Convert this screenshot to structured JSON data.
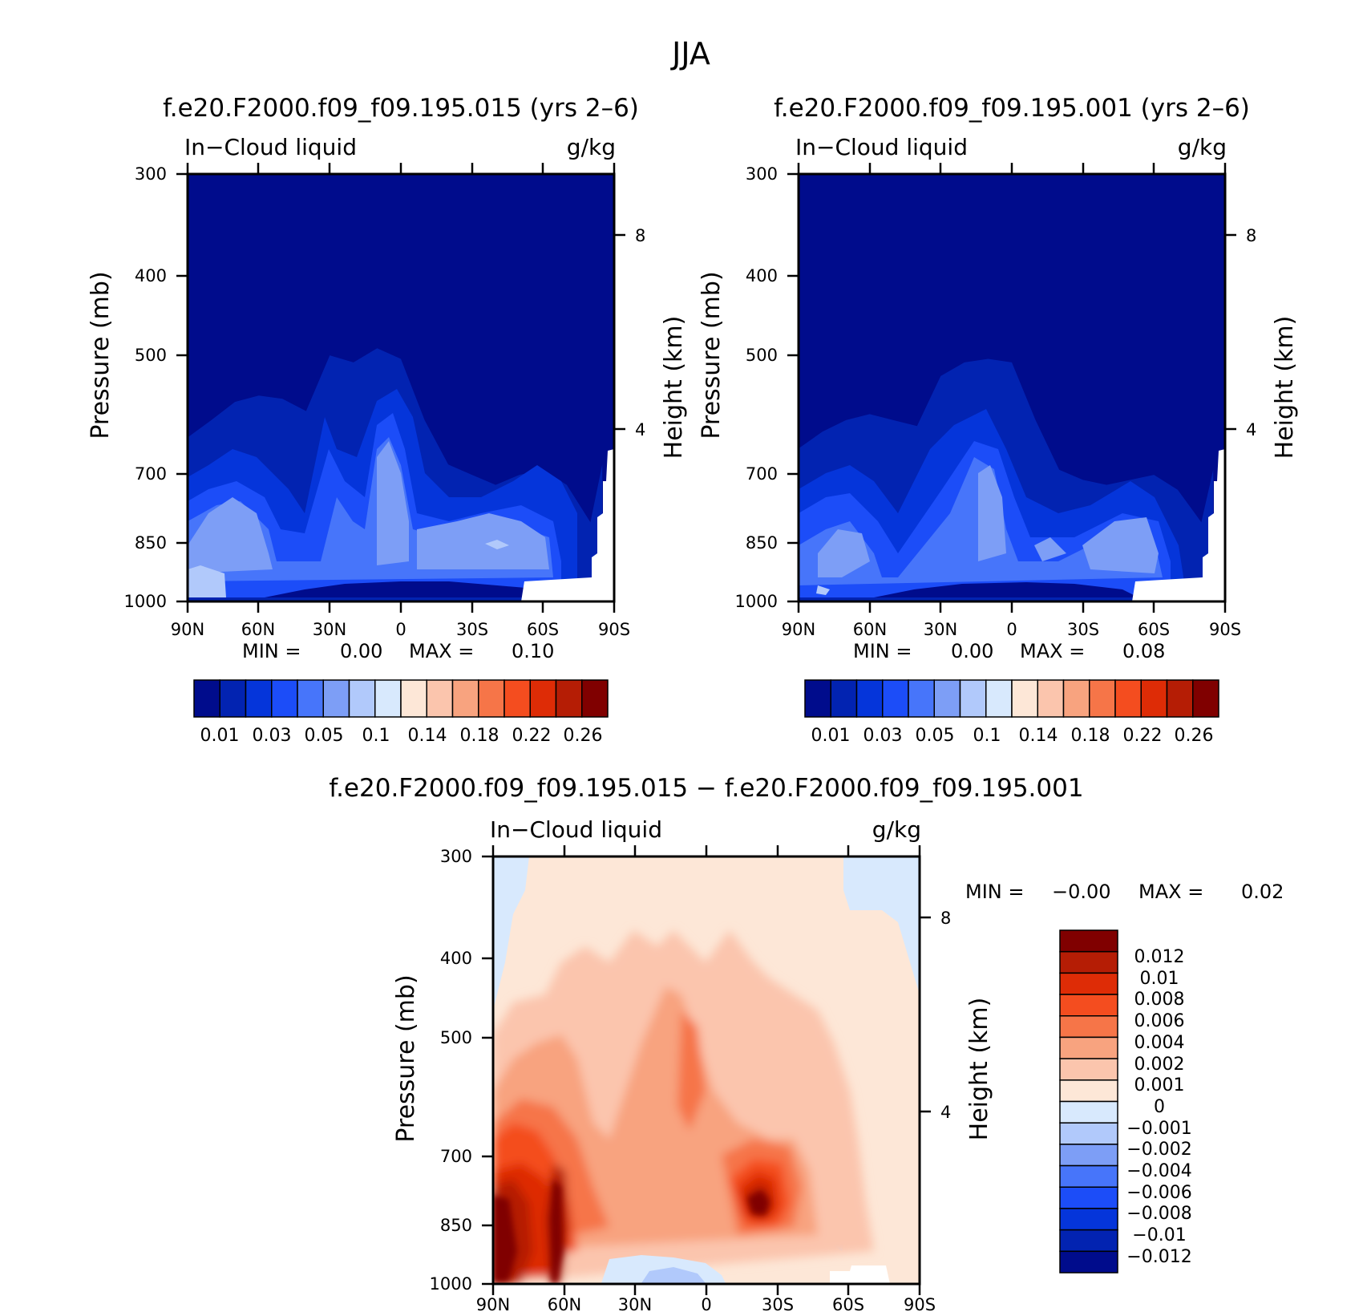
{
  "figure_title": "JJA",
  "colors": {
    "blue_palette": [
      "#000c8c",
      "#0223b1",
      "#0535da",
      "#1c4df8",
      "#4775fa",
      "#7d9ef6",
      "#b1c9fb",
      "#d8e9fd"
    ],
    "red_palette": [
      "#fde7d7",
      "#fbc5ad",
      "#f8a37f",
      "#f67548",
      "#f44d1f",
      "#de2c06",
      "#b51d05",
      "#800000"
    ],
    "diff_palette": [
      "#000c8c",
      "#0223b1",
      "#0535da",
      "#1c4df8",
      "#4775fa",
      "#7d9ef6",
      "#b1c9fb",
      "#d8e9fd",
      "#fde7d7",
      "#fbc5ad",
      "#f8a37f",
      "#f67548",
      "#f44d1f",
      "#de2c06",
      "#b51d05",
      "#800000"
    ]
  },
  "chart_data": [
    {
      "type": "heatmap",
      "id": "panel1",
      "title": "f.e20.F2000.f09_f09.195.015 (yrs 2–6)",
      "left_label": "In−Cloud liquid",
      "right_label": "g/kg",
      "ylabel": "Pressure (mb)",
      "y2label": "Height (km)",
      "x_ticks": [
        "90N",
        "60N",
        "30N",
        "0",
        "30S",
        "60S",
        "90S"
      ],
      "y_ticks": [
        "300",
        "400",
        "500",
        "700",
        "850",
        "1000"
      ],
      "y2_ticks": [
        "8",
        "4"
      ],
      "stats": {
        "min_label": "MIN =",
        "min": "0.00",
        "max_label": "MAX =",
        "max": "0.10"
      },
      "colorbar_labels": [
        "0.01",
        "0.03",
        "0.05",
        "0.1",
        "0.14",
        "0.18",
        "0.22",
        "0.26"
      ],
      "cloud_top_pressure_profile": [
        {
          "lat": 90,
          "p": 630
        },
        {
          "lat": 80,
          "p": 600
        },
        {
          "lat": 70,
          "p": 570
        },
        {
          "lat": 60,
          "p": 560
        },
        {
          "lat": 50,
          "p": 565
        },
        {
          "lat": 40,
          "p": 585
        },
        {
          "lat": 30,
          "p": 500
        },
        {
          "lat": 20,
          "p": 510
        },
        {
          "lat": 10,
          "p": 490
        },
        {
          "lat": 0,
          "p": 505
        },
        {
          "lat": -10,
          "p": 600
        },
        {
          "lat": -20,
          "p": 680
        },
        {
          "lat": -30,
          "p": 700
        },
        {
          "lat": -40,
          "p": 720
        },
        {
          "lat": -50,
          "p": 700
        },
        {
          "lat": -60,
          "p": 690
        },
        {
          "lat": -70,
          "p": 720
        },
        {
          "lat": -80,
          "p": 800
        },
        {
          "lat": -85,
          "p": 680
        }
      ]
    },
    {
      "type": "heatmap",
      "id": "panel2",
      "title": "f.e20.F2000.f09_f09.195.001 (yrs 2–6)",
      "left_label": "In−Cloud liquid",
      "right_label": "g/kg",
      "ylabel": "Pressure (mb)",
      "y2label": "Height (km)",
      "x_ticks": [
        "90N",
        "60N",
        "30N",
        "0",
        "30S",
        "60S",
        "90S"
      ],
      "y_ticks": [
        "300",
        "400",
        "500",
        "700",
        "850",
        "1000"
      ],
      "y2_ticks": [
        "8",
        "4"
      ],
      "stats": {
        "min_label": "MIN =",
        "min": "0.00",
        "max_label": "MAX =",
        "max": "0.08"
      },
      "colorbar_labels": [
        "0.01",
        "0.03",
        "0.05",
        "0.1",
        "0.14",
        "0.18",
        "0.22",
        "0.26"
      ],
      "cloud_top_pressure_profile": [
        {
          "lat": 90,
          "p": 650
        },
        {
          "lat": 80,
          "p": 620
        },
        {
          "lat": 70,
          "p": 600
        },
        {
          "lat": 60,
          "p": 590
        },
        {
          "lat": 50,
          "p": 600
        },
        {
          "lat": 40,
          "p": 610
        },
        {
          "lat": 30,
          "p": 530
        },
        {
          "lat": 20,
          "p": 510
        },
        {
          "lat": 10,
          "p": 505
        },
        {
          "lat": 0,
          "p": 510
        },
        {
          "lat": -10,
          "p": 600
        },
        {
          "lat": -20,
          "p": 690
        },
        {
          "lat": -30,
          "p": 710
        },
        {
          "lat": -40,
          "p": 720
        },
        {
          "lat": -50,
          "p": 710
        },
        {
          "lat": -60,
          "p": 700
        },
        {
          "lat": -70,
          "p": 730
        },
        {
          "lat": -80,
          "p": 800
        },
        {
          "lat": -85,
          "p": 690
        }
      ]
    },
    {
      "type": "heatmap",
      "id": "panel3",
      "title": "f.e20.F2000.f09_f09.195.015 − f.e20.F2000.f09_f09.195.001",
      "left_label": "In−Cloud liquid",
      "right_label": "g/kg",
      "ylabel": "Pressure (mb)",
      "y2label": "Height (km)",
      "x_ticks": [
        "90N",
        "60N",
        "30N",
        "0",
        "30S",
        "60S",
        "90S"
      ],
      "y_ticks": [
        "300",
        "400",
        "500",
        "700",
        "850",
        "1000"
      ],
      "y2_ticks": [
        "8",
        "4"
      ],
      "stats": {
        "min_label": "MIN =",
        "min": "−0.00",
        "max_label": "MAX =",
        "max": "0.02"
      },
      "colorbar_labels": [
        "0.012",
        "0.01",
        "0.008",
        "0.006",
        "0.004",
        "0.002",
        "0.001",
        "0",
        "−0.001",
        "−0.002",
        "−0.004",
        "−0.006",
        "−0.008",
        "−0.01",
        "−0.012"
      ]
    }
  ]
}
